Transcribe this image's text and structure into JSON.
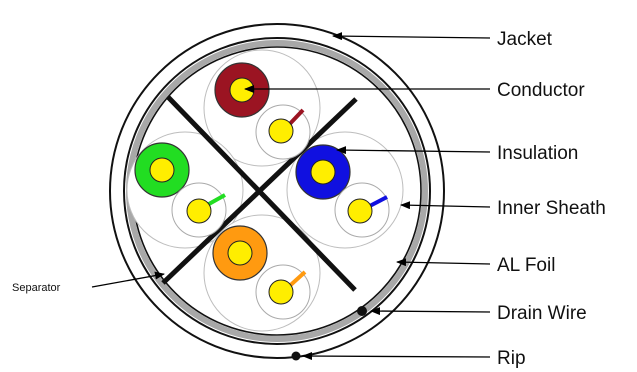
{
  "labels": {
    "jacket": "Jacket",
    "conductor": "Conductor",
    "insulation": "Insulation",
    "inner_sheath": "Inner Sheath",
    "al_foil": "AL Foil",
    "drain_wire": "Drain Wire",
    "rip": "Rip",
    "separator": "Separator"
  },
  "colors": {
    "conductor": "#ffee00",
    "pair_brown": "#9b1422",
    "pair_green": "#22dd22",
    "pair_blue": "#1010e0",
    "pair_orange": "#ff9a10",
    "foil_band": "#a8a8a8",
    "outline": "#111111"
  }
}
